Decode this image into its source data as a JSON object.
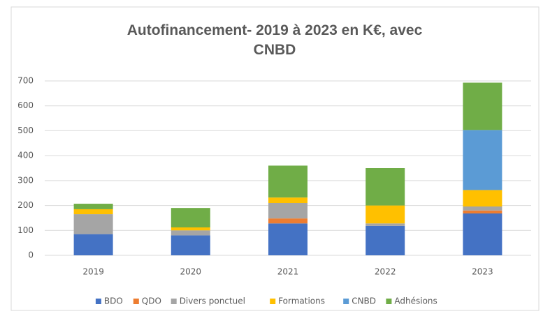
{
  "chart_data": {
    "type": "stacked_bar",
    "title": "Autofinancement- 2019 à 2023 en K€, avec CNBD",
    "categories": [
      "2019",
      "2020",
      "2021",
      "2022",
      "2023"
    ],
    "series": [
      {
        "name": "BDO",
        "color": "#4472c4",
        "values": [
          85,
          80,
          128,
          118,
          168
        ]
      },
      {
        "name": "QDO",
        "color": "#ed7d31",
        "values": [
          0,
          0,
          20,
          0,
          12
        ]
      },
      {
        "name": "Divers ponctuel",
        "color": "#a5a5a5",
        "values": [
          80,
          20,
          62,
          10,
          16
        ]
      },
      {
        "name": "Formations",
        "color": "#ffc000",
        "values": [
          20,
          12,
          22,
          72,
          66
        ]
      },
      {
        "name": "CNBD",
        "color": "#5b9bd5",
        "values": [
          0,
          0,
          0,
          0,
          241
        ]
      },
      {
        "name": "Adhésions",
        "color": "#70ad47",
        "values": [
          22,
          78,
          128,
          150,
          190
        ]
      }
    ],
    "ylim": [
      0,
      700
    ],
    "yticks": [
      0,
      100,
      200,
      300,
      400,
      500,
      600,
      700
    ],
    "grid": true,
    "legend": "bottom"
  }
}
